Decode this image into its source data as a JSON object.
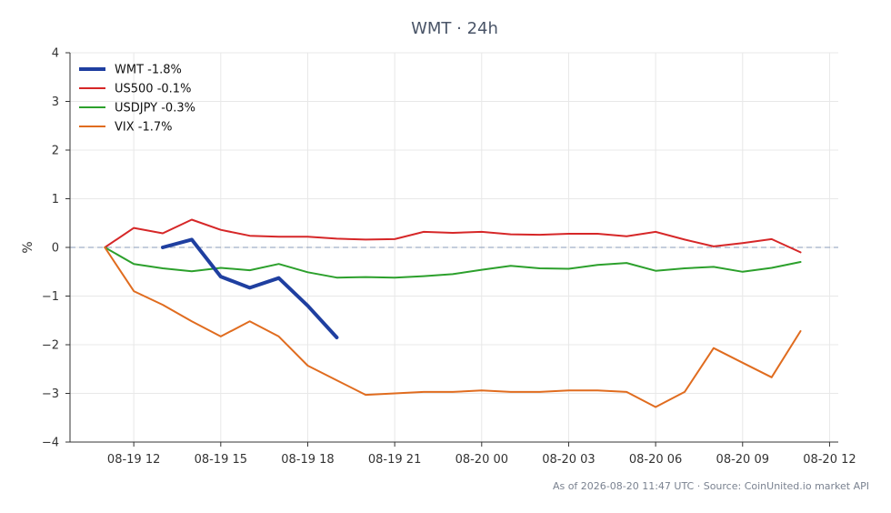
{
  "chart_data": {
    "type": "line",
    "title": "WMT · 24h",
    "xlabel": "",
    "ylabel": "%",
    "ylim": [
      -4,
      4
    ],
    "yticks": [
      4,
      3,
      2,
      1,
      0,
      -1,
      -2,
      -3,
      -4
    ],
    "ytick_labels": [
      "4",
      "3",
      "2",
      "1",
      "0",
      "−1",
      "−2",
      "−3",
      "−4"
    ],
    "xlim": [
      "2026-08-19T09:48",
      "2026-08-20T12:18"
    ],
    "xticks": [
      "2026-08-19T12:00",
      "2026-08-19T15:00",
      "2026-08-19T18:00",
      "2026-08-19T21:00",
      "2026-08-20T00:00",
      "2026-08-20T03:00",
      "2026-08-20T06:00",
      "2026-08-20T09:00",
      "2026-08-20T12:00"
    ],
    "xtick_labels": [
      "08-19 12",
      "08-19 15",
      "08-19 18",
      "08-19 21",
      "08-20 00",
      "08-20 03",
      "08-20 06",
      "08-20 09",
      "08-20 12"
    ],
    "grid": true,
    "legend_position": "top-left",
    "reference_line": {
      "y": 0,
      "style": "dashed",
      "color": "#8a9bb8"
    },
    "series": [
      {
        "name": "WMT -1.8%",
        "color": "#1f3fa0",
        "width": 4,
        "points": [
          [
            "2026-08-19T13:00",
            0.0
          ],
          [
            "2026-08-19T14:00",
            0.16
          ],
          [
            "2026-08-19T15:00",
            -0.6
          ],
          [
            "2026-08-19T16:00",
            -0.83
          ],
          [
            "2026-08-19T17:00",
            -0.63
          ],
          [
            "2026-08-19T18:00",
            -1.2
          ],
          [
            "2026-08-19T19:00",
            -1.85
          ]
        ]
      },
      {
        "name": "US500 -0.1%",
        "color": "#d62728",
        "width": 2,
        "points": [
          [
            "2026-08-19T11:00",
            0.0
          ],
          [
            "2026-08-19T12:00",
            0.4
          ],
          [
            "2026-08-19T13:00",
            0.29
          ],
          [
            "2026-08-19T14:00",
            0.57
          ],
          [
            "2026-08-19T15:00",
            0.36
          ],
          [
            "2026-08-19T16:00",
            0.24
          ],
          [
            "2026-08-19T17:00",
            0.22
          ],
          [
            "2026-08-19T18:00",
            0.22
          ],
          [
            "2026-08-19T19:00",
            0.18
          ],
          [
            "2026-08-19T20:00",
            0.16
          ],
          [
            "2026-08-19T21:00",
            0.17
          ],
          [
            "2026-08-19T22:00",
            0.32
          ],
          [
            "2026-08-19T23:00",
            0.3
          ],
          [
            "2026-08-20T00:00",
            0.32
          ],
          [
            "2026-08-20T01:00",
            0.27
          ],
          [
            "2026-08-20T02:00",
            0.26
          ],
          [
            "2026-08-20T03:00",
            0.28
          ],
          [
            "2026-08-20T04:00",
            0.28
          ],
          [
            "2026-08-20T05:00",
            0.23
          ],
          [
            "2026-08-20T06:00",
            0.32
          ],
          [
            "2026-08-20T07:00",
            0.16
          ],
          [
            "2026-08-20T08:00",
            0.02
          ],
          [
            "2026-08-20T09:00",
            0.09
          ],
          [
            "2026-08-20T10:00",
            0.17
          ],
          [
            "2026-08-20T11:00",
            -0.1
          ]
        ]
      },
      {
        "name": "USDJPY -0.3%",
        "color": "#2ca02c",
        "width": 2,
        "points": [
          [
            "2026-08-19T11:00",
            0.0
          ],
          [
            "2026-08-19T12:00",
            -0.34
          ],
          [
            "2026-08-19T13:00",
            -0.43
          ],
          [
            "2026-08-19T14:00",
            -0.49
          ],
          [
            "2026-08-19T15:00",
            -0.42
          ],
          [
            "2026-08-19T16:00",
            -0.47
          ],
          [
            "2026-08-19T17:00",
            -0.34
          ],
          [
            "2026-08-19T18:00",
            -0.51
          ],
          [
            "2026-08-19T19:00",
            -0.62
          ],
          [
            "2026-08-19T20:00",
            -0.61
          ],
          [
            "2026-08-19T21:00",
            -0.62
          ],
          [
            "2026-08-19T22:00",
            -0.59
          ],
          [
            "2026-08-19T23:00",
            -0.55
          ],
          [
            "2026-08-20T00:00",
            -0.46
          ],
          [
            "2026-08-20T01:00",
            -0.38
          ],
          [
            "2026-08-20T02:00",
            -0.43
          ],
          [
            "2026-08-20T03:00",
            -0.44
          ],
          [
            "2026-08-20T04:00",
            -0.36
          ],
          [
            "2026-08-20T05:00",
            -0.32
          ],
          [
            "2026-08-20T06:00",
            -0.48
          ],
          [
            "2026-08-20T07:00",
            -0.43
          ],
          [
            "2026-08-20T08:00",
            -0.4
          ],
          [
            "2026-08-20T09:00",
            -0.5
          ],
          [
            "2026-08-20T10:00",
            -0.42
          ],
          [
            "2026-08-20T11:00",
            -0.3
          ]
        ]
      },
      {
        "name": "VIX -1.7%",
        "color": "#e06c1f",
        "width": 2,
        "points": [
          [
            "2026-08-19T11:00",
            0.0
          ],
          [
            "2026-08-19T12:00",
            -0.9
          ],
          [
            "2026-08-19T13:00",
            -1.18
          ],
          [
            "2026-08-19T14:00",
            -1.52
          ],
          [
            "2026-08-19T15:00",
            -1.83
          ],
          [
            "2026-08-19T16:00",
            -1.52
          ],
          [
            "2026-08-19T17:00",
            -1.83
          ],
          [
            "2026-08-19T18:00",
            -2.43
          ],
          [
            "2026-08-19T19:00",
            -2.73
          ],
          [
            "2026-08-19T20:00",
            -3.03
          ],
          [
            "2026-08-19T21:00",
            -3.0
          ],
          [
            "2026-08-19T22:00",
            -2.97
          ],
          [
            "2026-08-19T23:00",
            -2.97
          ],
          [
            "2026-08-20T00:00",
            -2.94
          ],
          [
            "2026-08-20T01:00",
            -2.97
          ],
          [
            "2026-08-20T02:00",
            -2.97
          ],
          [
            "2026-08-20T03:00",
            -2.94
          ],
          [
            "2026-08-20T04:00",
            -2.94
          ],
          [
            "2026-08-20T05:00",
            -2.97
          ],
          [
            "2026-08-20T06:00",
            -3.28
          ],
          [
            "2026-08-20T07:00",
            -2.97
          ],
          [
            "2026-08-20T08:00",
            -2.07
          ],
          [
            "2026-08-20T09:00",
            -2.37
          ],
          [
            "2026-08-20T10:00",
            -2.67
          ],
          [
            "2026-08-20T11:00",
            -1.72
          ]
        ]
      }
    ]
  },
  "footer": {
    "text": "As of 2026-08-20 11:47 UTC · Source: CoinUnited.io market API"
  }
}
